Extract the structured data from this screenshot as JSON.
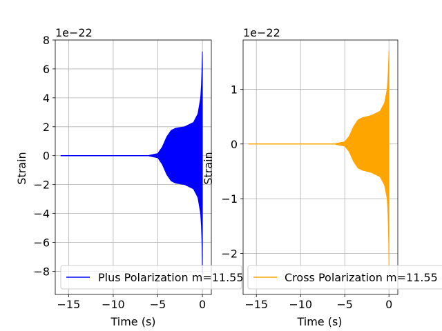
{
  "chart_data": [
    {
      "type": "line",
      "title": "",
      "xlabel": "Time (s)",
      "ylabel": "Strain",
      "offset_text": "1e−22",
      "xlim": [
        -16.5,
        1.0
      ],
      "ylim": [
        -9.6,
        8.0
      ],
      "xticks": [
        -15,
        -10,
        -5,
        0
      ],
      "xtick_labels": [
        "−15",
        "−10",
        "−5",
        "0"
      ],
      "yticks": [
        -8,
        -6,
        -4,
        -2,
        0,
        2,
        4,
        6,
        8
      ],
      "ytick_labels": [
        "−8",
        "−6",
        "−4",
        "−2",
        "0",
        "2",
        "4",
        "6",
        "8"
      ],
      "grid": true,
      "legend_position": "lower-left",
      "series": [
        {
          "name": "Plus Polarization m=11.55",
          "color": "#0000ff",
          "t_start": -15.9,
          "t_end": 0.0,
          "envelope_t": [
            -15.9,
            -6.0,
            -5.0,
            -4.5,
            -4.0,
            -3.5,
            -3.0,
            -2.0,
            -1.0,
            -0.5,
            -0.2,
            -0.1,
            -0.03,
            0.0
          ],
          "envelope_upper": [
            0.0,
            0.02,
            0.15,
            0.6,
            1.3,
            1.75,
            1.9,
            2.0,
            2.3,
            2.9,
            4.0,
            5.0,
            6.5,
            7.2
          ],
          "envelope_lower": [
            0.0,
            -0.02,
            -0.15,
            -0.6,
            -1.3,
            -1.75,
            -1.9,
            -2.0,
            -2.3,
            -2.9,
            -4.0,
            -5.0,
            -6.5,
            -8.2
          ]
        }
      ]
    },
    {
      "type": "line",
      "title": "",
      "xlabel": "Time (s)",
      "ylabel": "Strain",
      "offset_text": "1e−22",
      "xlim": [
        -16.5,
        1.0
      ],
      "ylim": [
        -2.75,
        1.9
      ],
      "xticks": [
        -15,
        -10,
        -5,
        0
      ],
      "xtick_labels": [
        "−15",
        "−10",
        "−5",
        "0"
      ],
      "yticks": [
        -2,
        -1,
        0,
        1
      ],
      "ytick_labels": [
        "−2",
        "−1",
        "0",
        "1"
      ],
      "grid": true,
      "legend_position": "lower-left",
      "series": [
        {
          "name": "Cross Polarization m=11.55",
          "color": "#ffa500",
          "t_start": -15.9,
          "t_end": 0.0,
          "envelope_t": [
            -15.9,
            -6.0,
            -5.0,
            -4.5,
            -4.0,
            -3.5,
            -3.0,
            -2.0,
            -1.0,
            -0.5,
            -0.2,
            -0.1,
            -0.03,
            0.0
          ],
          "envelope_upper": [
            0.01,
            0.01,
            0.04,
            0.14,
            0.32,
            0.44,
            0.48,
            0.52,
            0.6,
            0.75,
            1.0,
            1.25,
            1.55,
            1.7
          ],
          "envelope_lower": [
            -0.01,
            -0.01,
            -0.04,
            -0.14,
            -0.32,
            -0.44,
            -0.48,
            -0.52,
            -0.6,
            -0.75,
            -1.0,
            -1.3,
            -1.8,
            -2.25
          ]
        }
      ]
    }
  ]
}
